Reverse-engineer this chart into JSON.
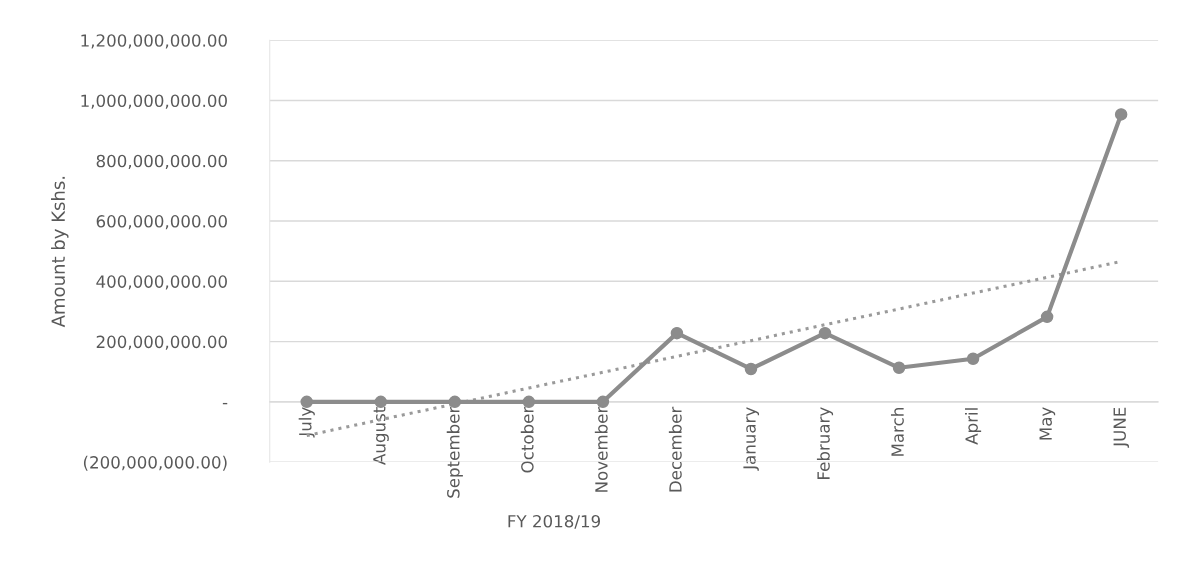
{
  "chart_data": {
    "type": "line",
    "xlabel": "FY 2018/19",
    "ylabel": "Amount by Kshs.",
    "categories": [
      "July",
      "August",
      "September",
      "October",
      "November",
      "December",
      "January",
      "February",
      "March",
      "April",
      "May",
      "JUNE"
    ],
    "series": [
      {
        "color": "#8c8c8c",
        "marker": "circle",
        "line_style": "solid",
        "values": [
          0,
          0,
          0,
          0,
          0,
          228000000,
          109000000,
          228000000,
          113000000,
          143000000,
          282000000,
          954000000
        ]
      },
      {
        "color": "#9a9a9a",
        "marker": "none",
        "line_style": "dotted",
        "values": [
          -112000000,
          -59000000,
          -7000000,
          46000000,
          98000000,
          151000000,
          203000000,
          256000000,
          308000000,
          361000000,
          413000000,
          466000000
        ]
      }
    ],
    "ylim": [
      -200000000,
      1200000000
    ],
    "yticks": [
      {
        "value": -200000000,
        "label": "(200,000,000.00)"
      },
      {
        "value": 0,
        "label": "-"
      },
      {
        "value": 200000000,
        "label": "200,000,000.00"
      },
      {
        "value": 400000000,
        "label": "400,000,000.00"
      },
      {
        "value": 600000000,
        "label": "600,000,000.00"
      },
      {
        "value": 800000000,
        "label": "800,000,000.00"
      },
      {
        "value": 1000000000,
        "label": "1,000,000,000.00"
      },
      {
        "value": 1200000000,
        "label": "1,200,000,000.00"
      }
    ],
    "grid": "y"
  }
}
